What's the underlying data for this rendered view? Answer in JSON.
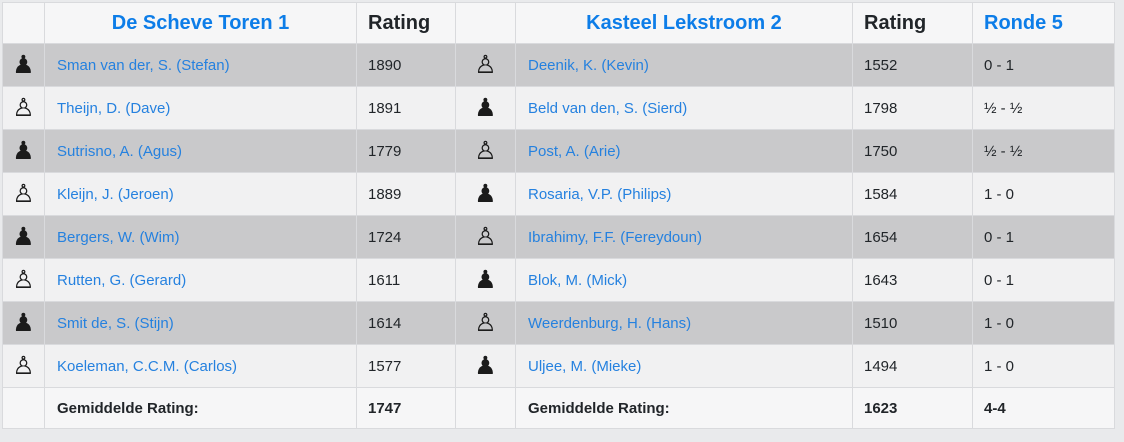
{
  "table": {
    "home": {
      "title": "De Scheve Toren 1",
      "rating_header": "Rating"
    },
    "away": {
      "title": "Kasteel Lekstroom 2",
      "rating_header": "Rating"
    },
    "round_header": "Ronde 5",
    "rows": [
      {
        "home_color": "black",
        "home_icon": "♟",
        "home_name": "Sman van der, S. (Stefan)",
        "home_rating": "1890",
        "away_color": "white",
        "away_icon": "♙",
        "away_name": "Deenik, K. (Kevin)",
        "away_rating": "1552",
        "result": "0 - 1"
      },
      {
        "home_color": "white",
        "home_icon": "♙",
        "home_name": "Theijn, D. (Dave)",
        "home_rating": "1891",
        "away_color": "black",
        "away_icon": "♟",
        "away_name": "Beld van den, S. (Sierd)",
        "away_rating": "1798",
        "result": "½ - ½"
      },
      {
        "home_color": "black",
        "home_icon": "♟",
        "home_name": "Sutrisno, A. (Agus)",
        "home_rating": "1779",
        "away_color": "white",
        "away_icon": "♙",
        "away_name": "Post, A. (Arie)",
        "away_rating": "1750",
        "result": "½ - ½"
      },
      {
        "home_color": "white",
        "home_icon": "♙",
        "home_name": "Kleijn, J. (Jeroen)",
        "home_rating": "1889",
        "away_color": "black",
        "away_icon": "♟",
        "away_name": "Rosaria, V.P. (Philips)",
        "away_rating": "1584",
        "result": "1 - 0"
      },
      {
        "home_color": "black",
        "home_icon": "♟",
        "home_name": "Bergers, W. (Wim)",
        "home_rating": "1724",
        "away_color": "white",
        "away_icon": "♙",
        "away_name": "Ibrahimy, F.F. (Fereydoun)",
        "away_rating": "1654",
        "result": "0 - 1"
      },
      {
        "home_color": "white",
        "home_icon": "♙",
        "home_name": "Rutten, G. (Gerard)",
        "home_rating": "1611",
        "away_color": "black",
        "away_icon": "♟",
        "away_name": "Blok, M. (Mick)",
        "away_rating": "1643",
        "result": "0 - 1"
      },
      {
        "home_color": "black",
        "home_icon": "♟",
        "home_name": "Smit de, S. (Stijn)",
        "home_rating": "1614",
        "away_color": "white",
        "away_icon": "♙",
        "away_name": "Weerdenburg, H. (Hans)",
        "away_rating": "1510",
        "result": "1 - 0"
      },
      {
        "home_color": "white",
        "home_icon": "♙",
        "home_name": "Koeleman, C.C.M. (Carlos)",
        "home_rating": "1577",
        "away_color": "black",
        "away_icon": "♟",
        "away_name": "Uljee, M. (Mieke)",
        "away_rating": "1494",
        "result": "1 - 0"
      }
    ],
    "footer": {
      "label": "Gemiddelde Rating:",
      "home_avg": "1747",
      "away_avg": "1623",
      "total": "4-4"
    }
  },
  "colors": {
    "accent_blue": "#0d7de8",
    "link_blue": "#2581df",
    "row_gray": "#c9c9cb",
    "row_light": "#f1f1f2"
  }
}
